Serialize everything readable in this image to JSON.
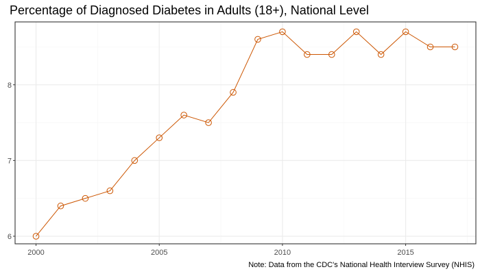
{
  "chart_data": {
    "type": "line",
    "title": "Percentage of Diagnosed Diabetes in Adults (18+), National Level",
    "caption": "Note: Data from the CDC's National Health Interview Survey (NHIS)",
    "xlabel": "",
    "ylabel": "",
    "x": [
      2000,
      2001,
      2002,
      2003,
      2004,
      2005,
      2006,
      2007,
      2008,
      2009,
      2010,
      2011,
      2012,
      2013,
      2014,
      2015,
      2016,
      2017
    ],
    "series": [
      {
        "values": [
          6.0,
          6.4,
          6.5,
          6.6,
          7.0,
          7.3,
          7.6,
          7.5,
          7.9,
          8.6,
          8.7,
          8.4,
          8.4,
          8.7,
          8.4,
          8.7,
          8.5,
          8.5
        ],
        "color": "#cc5500",
        "marker": "circle-open"
      }
    ],
    "xlim": [
      1999.15,
      2017.85
    ],
    "ylim": [
      5.9,
      8.83
    ],
    "xticks": [
      2000,
      2005,
      2010,
      2015
    ],
    "xtick_labels": [
      "2000",
      "2005",
      "2010",
      "2015"
    ],
    "yticks": [
      6,
      7,
      8
    ],
    "ytick_labels": [
      "6",
      "7",
      "8"
    ],
    "grid": true,
    "legend": "none",
    "colors": {
      "panel_background": "#ffffff",
      "panel_border": "#333333",
      "grid_major": "#ebebeb",
      "grid_minor": "#f5f5f5",
      "axis_text": "#4d4d4d"
    }
  }
}
